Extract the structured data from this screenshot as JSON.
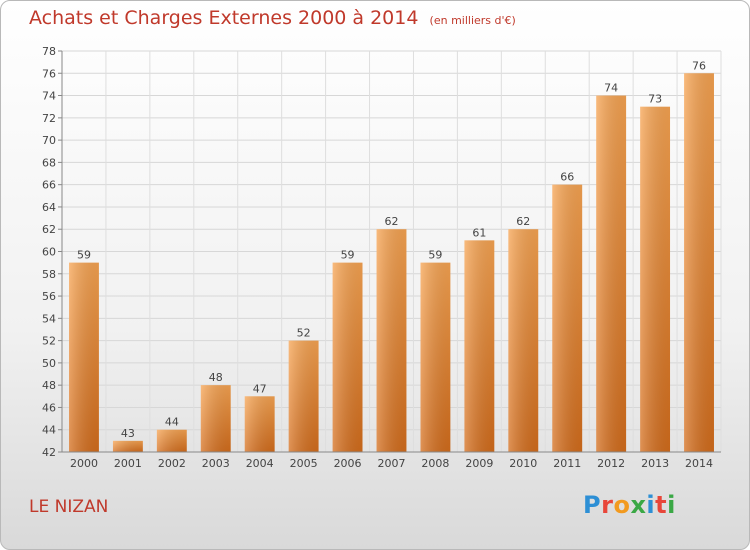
{
  "header": {
    "title": "Achats et Charges Externes 2000 à 2014",
    "subtitle": "(en milliers d'€)"
  },
  "footer": {
    "city": "LE NIZAN",
    "logo_text": "Proxiti",
    "logo_colors": [
      "#2d8fd5",
      "#e8463a",
      "#f29a1f",
      "#3aa845",
      "#2d8fd5",
      "#e8463a",
      "#3aa845"
    ]
  },
  "chart_data": {
    "type": "bar",
    "title": "Achats et Charges Externes 2000 à 2014",
    "subtitle": "(en milliers d'€)",
    "categories": [
      "2000",
      "2001",
      "2002",
      "2003",
      "2004",
      "2005",
      "2006",
      "2007",
      "2008",
      "2009",
      "2010",
      "2011",
      "2012",
      "2013",
      "2014"
    ],
    "values": [
      59,
      43,
      44,
      48,
      47,
      52,
      59,
      62,
      59,
      61,
      62,
      66,
      74,
      73,
      76
    ],
    "data_labels": [
      "59",
      "43",
      "44",
      "48",
      "47",
      "52",
      "59",
      "62",
      "59",
      "61",
      "62",
      "66",
      "74",
      "73",
      "76"
    ],
    "ylim": [
      42,
      78
    ],
    "ytick_step": 2,
    "grid": true,
    "bar_color": "#f0923a",
    "bar_color_dark": "#d96e1a"
  }
}
